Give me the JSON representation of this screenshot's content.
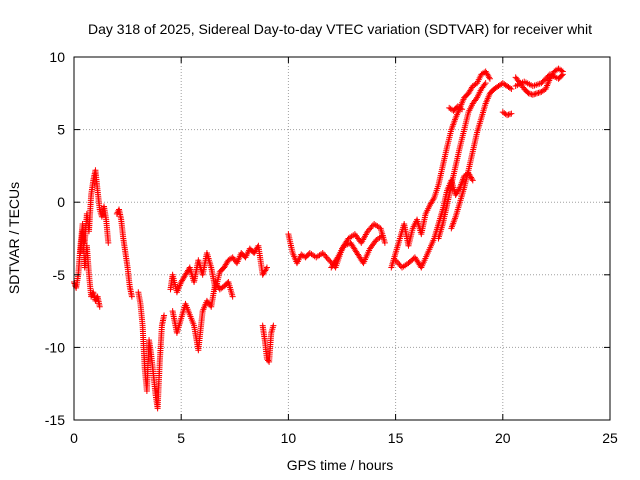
{
  "chart_data": {
    "type": "scatter",
    "title": "Day 318 of 2025, Sidereal Day-to-day VTEC variation (SDTVAR) for receiver whit",
    "xlabel": "GPS time / hours",
    "ylabel": "SDTVAR / TECUs",
    "xlim": [
      0,
      25
    ],
    "ylim": [
      -15,
      10
    ],
    "xticks": [
      0,
      5,
      10,
      15,
      20,
      25
    ],
    "yticks": [
      -15,
      -10,
      -5,
      0,
      5,
      10
    ],
    "grid": true,
    "marker": "+",
    "color": "#ff0000",
    "series": [
      {
        "name": "SDTVAR",
        "segments": [
          [
            [
              0.0,
              -5.5
            ],
            [
              0.1,
              -5.9
            ],
            [
              0.2,
              -5.0
            ],
            [
              0.3,
              -3.0
            ],
            [
              0.4,
              -1.5
            ],
            [
              0.5,
              -4.5
            ],
            [
              0.6,
              -3.0
            ],
            [
              0.7,
              -5.0
            ],
            [
              0.8,
              -6.5
            ],
            [
              0.9,
              -6.2
            ],
            [
              1.0,
              -6.8
            ],
            [
              1.1,
              -6.5
            ],
            [
              1.2,
              -7.2
            ]
          ],
          [
            [
              0.3,
              -3.5
            ],
            [
              0.4,
              -2.0
            ],
            [
              0.5,
              -2.8
            ],
            [
              0.6,
              -0.8
            ],
            [
              0.7,
              -2.0
            ],
            [
              0.8,
              0.5
            ],
            [
              0.9,
              1.5
            ],
            [
              1.0,
              2.2
            ],
            [
              1.1,
              0.8
            ],
            [
              1.2,
              -0.5
            ],
            [
              1.3,
              -1.0
            ],
            [
              1.4,
              -0.3
            ],
            [
              1.5,
              -1.2
            ],
            [
              1.6,
              -2.8
            ]
          ],
          [
            [
              2.0,
              -0.8
            ],
            [
              2.1,
              -0.5
            ],
            [
              2.2,
              -1.2
            ],
            [
              2.3,
              -2.5
            ],
            [
              2.4,
              -3.5
            ],
            [
              2.5,
              -4.5
            ],
            [
              2.6,
              -5.8
            ],
            [
              2.7,
              -6.5
            ]
          ],
          [
            [
              3.0,
              -6.2
            ],
            [
              3.1,
              -7.0
            ],
            [
              3.2,
              -8.5
            ],
            [
              3.3,
              -11.5
            ],
            [
              3.4,
              -13.0
            ],
            [
              3.5,
              -9.5
            ],
            [
              3.6,
              -10.5
            ],
            [
              3.7,
              -11.8
            ],
            [
              3.8,
              -13.2
            ],
            [
              3.9,
              -14.2
            ],
            [
              4.0,
              -11.0
            ],
            [
              4.1,
              -8.5
            ],
            [
              4.2,
              -7.8
            ]
          ],
          [
            [
              4.5,
              -6.0
            ],
            [
              4.6,
              -5.0
            ],
            [
              4.8,
              -6.2
            ],
            [
              5.0,
              -5.5
            ],
            [
              5.2,
              -5.0
            ],
            [
              5.4,
              -4.5
            ],
            [
              5.6,
              -5.5
            ],
            [
              5.8,
              -4.0
            ],
            [
              6.0,
              -5.0
            ],
            [
              6.2,
              -3.5
            ],
            [
              6.4,
              -4.5
            ],
            [
              6.6,
              -6.0
            ],
            [
              6.8,
              -4.8
            ],
            [
              7.0,
              -4.5
            ],
            [
              7.2,
              -4.0
            ],
            [
              7.4,
              -3.8
            ],
            [
              7.6,
              -4.2
            ],
            [
              7.8,
              -3.5
            ],
            [
              8.0,
              -3.8
            ],
            [
              8.2,
              -3.2
            ],
            [
              8.4,
              -3.5
            ],
            [
              8.6,
              -3.0
            ],
            [
              8.8,
              -5.0
            ],
            [
              9.0,
              -4.5
            ]
          ],
          [
            [
              4.6,
              -7.5
            ],
            [
              4.8,
              -9.0
            ],
            [
              5.0,
              -8.0
            ],
            [
              5.2,
              -7.0
            ],
            [
              5.6,
              -8.5
            ],
            [
              5.8,
              -10.2
            ],
            [
              6.0,
              -7.5
            ],
            [
              6.2,
              -6.8
            ],
            [
              6.4,
              -7.2
            ],
            [
              6.6,
              -5.5
            ],
            [
              6.8,
              -6.0
            ],
            [
              7.0,
              -5.8
            ],
            [
              7.2,
              -5.5
            ],
            [
              7.4,
              -6.5
            ]
          ],
          [
            [
              8.8,
              -8.5
            ],
            [
              8.9,
              -9.5
            ],
            [
              9.0,
              -10.8
            ],
            [
              9.1,
              -11.0
            ],
            [
              9.2,
              -9.0
            ],
            [
              9.3,
              -8.5
            ]
          ],
          [
            [
              10.0,
              -2.2
            ],
            [
              10.2,
              -3.5
            ],
            [
              10.4,
              -4.2
            ],
            [
              10.6,
              -3.6
            ],
            [
              10.8,
              -3.8
            ],
            [
              11.0,
              -3.5
            ],
            [
              11.3,
              -3.8
            ],
            [
              11.6,
              -3.5
            ],
            [
              11.9,
              -4.0
            ],
            [
              12.2,
              -4.5
            ],
            [
              12.5,
              -3.2
            ],
            [
              12.8,
              -2.5
            ],
            [
              13.1,
              -2.2
            ],
            [
              13.4,
              -2.8
            ],
            [
              13.7,
              -2.0
            ],
            [
              14.0,
              -1.5
            ],
            [
              14.3,
              -1.8
            ],
            [
              14.5,
              -2.8
            ]
          ],
          [
            [
              12.0,
              -4.5
            ],
            [
              12.3,
              -3.8
            ],
            [
              12.6,
              -3.0
            ],
            [
              12.9,
              -2.8
            ],
            [
              13.2,
              -3.5
            ],
            [
              13.5,
              -4.2
            ],
            [
              13.8,
              -3.2
            ],
            [
              14.1,
              -2.6
            ],
            [
              14.4,
              -2.3
            ]
          ],
          [
            [
              14.8,
              -4.5
            ],
            [
              15.0,
              -3.5
            ],
            [
              15.2,
              -2.5
            ],
            [
              15.4,
              -1.5
            ],
            [
              15.6,
              -3.0
            ],
            [
              15.8,
              -1.8
            ],
            [
              16.0,
              -1.2
            ],
            [
              16.2,
              -2.2
            ],
            [
              16.4,
              -0.8
            ],
            [
              16.6,
              -0.2
            ],
            [
              16.8,
              0.3
            ],
            [
              17.0,
              1.2
            ],
            [
              17.2,
              2.5
            ],
            [
              17.4,
              3.8
            ],
            [
              17.6,
              5.0
            ],
            [
              17.8,
              5.8
            ],
            [
              18.0,
              6.5
            ],
            [
              18.2,
              7.2
            ],
            [
              18.4,
              7.5
            ],
            [
              18.6,
              8.0
            ],
            [
              18.8,
              8.2
            ],
            [
              19.0,
              8.8
            ],
            [
              19.2,
              9.0
            ],
            [
              19.4,
              8.5
            ]
          ],
          [
            [
              15.0,
              -4.0
            ],
            [
              15.3,
              -4.5
            ],
            [
              15.6,
              -4.2
            ],
            [
              15.9,
              -3.8
            ],
            [
              16.2,
              -4.5
            ],
            [
              16.5,
              -3.5
            ],
            [
              16.8,
              -2.5
            ],
            [
              17.0,
              -1.5
            ],
            [
              17.2,
              -0.5
            ],
            [
              17.4,
              0.8
            ],
            [
              17.6,
              1.5
            ],
            [
              17.8,
              0.5
            ],
            [
              18.0,
              1.0
            ],
            [
              18.2,
              1.8
            ],
            [
              18.4,
              2.0
            ],
            [
              18.6,
              1.5
            ]
          ],
          [
            [
              17.6,
              -1.8
            ],
            [
              17.8,
              -1.0
            ],
            [
              18.0,
              0.0
            ],
            [
              18.2,
              1.0
            ],
            [
              18.4,
              2.2
            ],
            [
              18.6,
              3.5
            ],
            [
              18.8,
              4.8
            ],
            [
              19.0,
              5.8
            ],
            [
              19.2,
              6.8
            ],
            [
              19.4,
              7.5
            ],
            [
              19.6,
              7.8
            ],
            [
              19.8,
              8.0
            ],
            [
              20.0,
              8.2
            ],
            [
              20.2,
              8.0
            ],
            [
              20.4,
              7.8
            ]
          ],
          [
            [
              17.0,
              -2.5
            ],
            [
              17.2,
              -1.5
            ],
            [
              17.4,
              -0.2
            ],
            [
              17.6,
              1.2
            ],
            [
              17.8,
              2.5
            ],
            [
              18.0,
              3.8
            ],
            [
              18.2,
              5.0
            ],
            [
              18.4,
              6.2
            ],
            [
              18.6,
              6.8
            ],
            [
              18.8,
              7.2
            ],
            [
              19.0,
              7.8
            ],
            [
              19.2,
              8.2
            ]
          ],
          [
            [
              17.5,
              6.5
            ],
            [
              17.7,
              6.3
            ],
            [
              17.9,
              6.6
            ],
            [
              18.1,
              6.4
            ]
          ],
          [
            [
              20.0,
              6.2
            ],
            [
              20.2,
              6.0
            ],
            [
              20.4,
              6.1
            ]
          ],
          [
            [
              20.6,
              8.6
            ],
            [
              20.8,
              8.2
            ],
            [
              21.0,
              7.8
            ],
            [
              21.2,
              7.5
            ],
            [
              21.4,
              7.4
            ],
            [
              21.6,
              7.5
            ],
            [
              21.8,
              7.6
            ],
            [
              22.0,
              7.8
            ],
            [
              22.2,
              8.5
            ],
            [
              22.4,
              9.0
            ],
            [
              22.6,
              9.2
            ],
            [
              22.8,
              9.0
            ]
          ],
          [
            [
              20.6,
              8.0
            ],
            [
              21.0,
              8.3
            ],
            [
              21.4,
              8.0
            ],
            [
              21.8,
              8.2
            ],
            [
              22.2,
              8.8
            ],
            [
              22.6,
              8.5
            ],
            [
              22.8,
              8.8
            ]
          ]
        ]
      }
    ]
  }
}
